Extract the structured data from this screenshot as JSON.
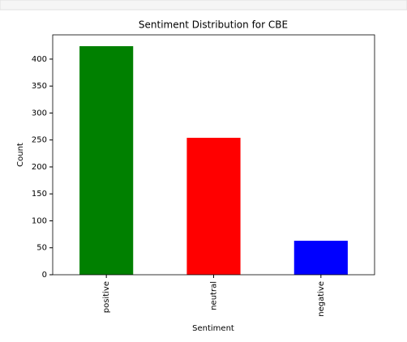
{
  "chart_data": {
    "type": "bar",
    "title": "Sentiment Distribution for CBE",
    "x_label": "Sentiment",
    "y_label": "Count",
    "categories": [
      "positive",
      "neutral",
      "negative"
    ],
    "values": [
      424,
      254,
      63
    ],
    "colors": [
      "#008000",
      "#ff0000",
      "#0000ff"
    ],
    "ylim": [
      0,
      445
    ],
    "yticks": [
      0,
      50,
      100,
      150,
      200,
      250,
      300,
      350,
      400
    ],
    "grid": false
  }
}
